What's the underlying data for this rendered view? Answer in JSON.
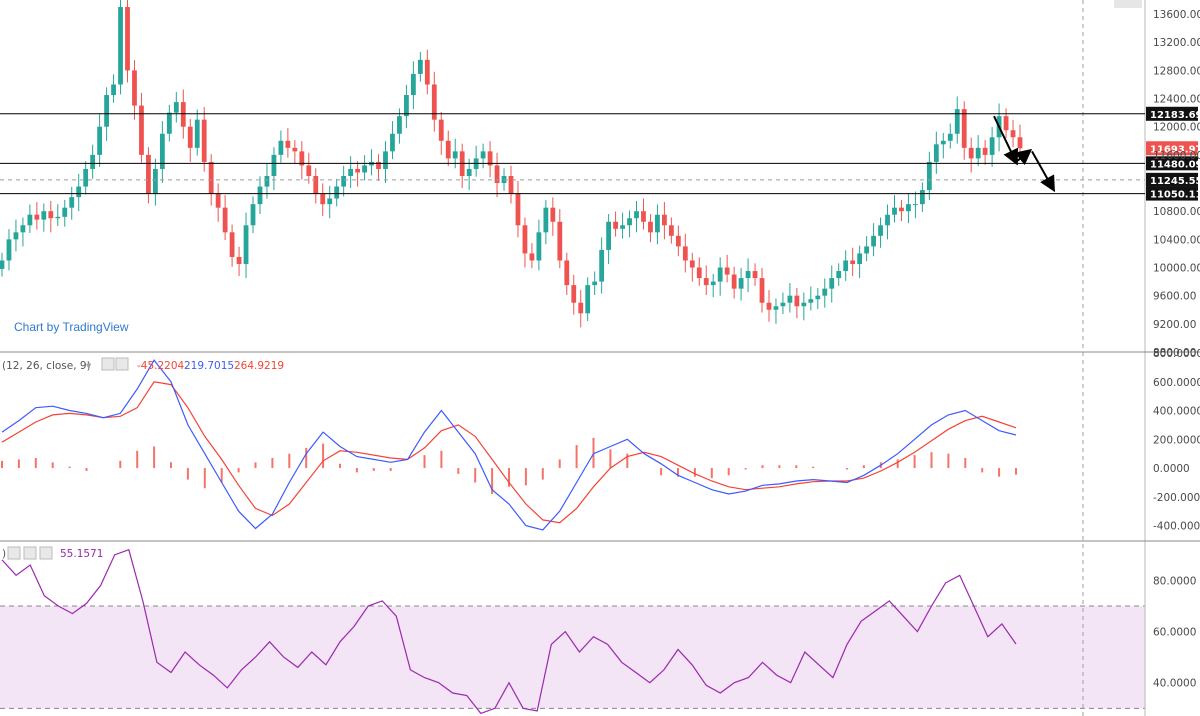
{
  "watermark": "Chart by TradingView",
  "colors": {
    "up": "#26a69a",
    "down": "#ef5350",
    "macd": "#3d5afe",
    "signal": "#f44336",
    "rsi": "#9c27b0",
    "rsi_band": "#f3e5f5"
  },
  "chart_data": [
    {
      "type": "candlestick",
      "panel": "price",
      "y_ticks": [
        "13600.00",
        "13200.00",
        "12800.00",
        "12400.00",
        "12000.00",
        "11600.00",
        "10800.00",
        "10400.00",
        "10000.00",
        "9600.00",
        "9200.00",
        "8800.00"
      ],
      "ylim": [
        8800,
        13800
      ],
      "level_labels": [
        "12183.69",
        "11693.97",
        "11480.09",
        "11245.55",
        "11050.11"
      ],
      "levels": [
        12183.69,
        11480.09,
        11245.55,
        11050.11
      ],
      "last_price": 11693.97,
      "close_series": [
        10100,
        10400,
        10500,
        10600,
        10750,
        10680,
        10800,
        10700,
        10720,
        10850,
        11000,
        11150,
        11400,
        11600,
        12000,
        12450,
        12600,
        13700,
        12800,
        12300,
        11600,
        11050,
        11400,
        11900,
        12200,
        12350,
        12000,
        11700,
        12100,
        11500,
        11050,
        10850,
        10500,
        10150,
        10050,
        10600,
        10900,
        11150,
        11300,
        11600,
        11800,
        11700,
        11650,
        11450,
        11300,
        11050,
        10900,
        10980,
        11150,
        11300,
        11400,
        11350,
        11450,
        11500,
        11400,
        11650,
        11900,
        12150,
        12450,
        12750,
        12950,
        12600,
        12100,
        11800,
        11550,
        11650,
        11300,
        11400,
        11550,
        11650,
        11450,
        11200,
        11300,
        11050,
        10600,
        10200,
        10100,
        10500,
        10850,
        10650,
        10100,
        9750,
        9500,
        9350,
        9750,
        9800,
        10250,
        10650,
        10550,
        10600,
        10700,
        10800,
        10650,
        10500,
        10750,
        10600,
        10450,
        10300,
        10100,
        10000,
        9850,
        9750,
        9800,
        10000,
        9900,
        9700,
        9850,
        9950,
        9850,
        9500,
        9400,
        9450,
        9500,
        9600,
        9450,
        9500,
        9550,
        9600,
        9700,
        9850,
        9950,
        10100,
        10050,
        10200,
        10300,
        10450,
        10600,
        10750,
        10850,
        10800,
        10900,
        10900,
        11100,
        11500,
        11750,
        11800,
        11900,
        12250,
        11700,
        11550,
        11700,
        11600,
        11850,
        12150,
        11950,
        11850,
        11693.97
      ],
      "projection_arrows": [
        [
          [
            12183,
            11480
          ],
          [
            11800,
            11245
          ]
        ],
        [
          [
            11500,
            11600
          ],
          [
            11245,
            11050
          ]
        ]
      ]
    },
    {
      "type": "line",
      "panel": "macd",
      "legend": [
        "(12, 26, close, 9)",
        "-45.2204",
        "219.7015",
        "264.9219"
      ],
      "y_ticks": [
        "800.0000",
        "600.0000",
        "400.0000",
        "200.0000",
        "0.0000",
        "-200.0000",
        "-400.0000"
      ],
      "ylim": [
        -500,
        800
      ],
      "series": [
        {
          "values": [
            250,
            330,
            420,
            430,
            400,
            380,
            350,
            380,
            550,
            750,
            600,
            300,
            100,
            -100,
            -300,
            -420,
            -320,
            -100,
            100,
            250,
            150,
            80,
            60,
            40,
            60,
            250,
            400,
            250,
            100,
            -150,
            -250,
            -400,
            -430,
            -300,
            -100,
            100,
            150,
            200,
            100,
            30,
            -50,
            -100,
            -150,
            -180,
            -160,
            -120,
            -110,
            -90,
            -80,
            -90,
            -100,
            -50,
            20,
            100,
            200,
            300,
            370,
            400,
            330,
            260,
            230
          ]
        },
        {
          "values": [
            180,
            250,
            320,
            370,
            380,
            370,
            350,
            360,
            420,
            600,
            580,
            420,
            220,
            60,
            -120,
            -280,
            -330,
            -250,
            -100,
            50,
            120,
            110,
            90,
            70,
            60,
            140,
            260,
            300,
            220,
            60,
            -100,
            -250,
            -360,
            -380,
            -280,
            -130,
            0,
            80,
            110,
            80,
            20,
            -40,
            -90,
            -130,
            -150,
            -140,
            -130,
            -110,
            -95,
            -90,
            -90,
            -70,
            -20,
            40,
            110,
            190,
            270,
            330,
            360,
            320,
            280
          ]
        },
        {
          "values": [
            50,
            60,
            70,
            40,
            10,
            -20,
            0,
            50,
            120,
            150,
            40,
            -80,
            -140,
            -100,
            -30,
            40,
            70,
            100,
            140,
            170,
            30,
            -30,
            -20,
            -20,
            0,
            90,
            120,
            -40,
            -100,
            -180,
            -130,
            -120,
            -80,
            60,
            160,
            210,
            130,
            100,
            0,
            -50,
            -60,
            -60,
            -70,
            -50,
            -10,
            20,
            20,
            20,
            10,
            0,
            -10,
            20,
            40,
            60,
            90,
            110,
            100,
            70,
            -30,
            -60,
            -45.2204
          ]
        }
      ]
    },
    {
      "type": "line",
      "panel": "rsi",
      "legend": [
        "55.1571"
      ],
      "y_ticks": [
        "80.0000",
        "60.0000",
        "40.0000"
      ],
      "ylim": [
        27,
        95
      ],
      "band": [
        30,
        70
      ],
      "series": [
        {
          "values": [
            88,
            82,
            86,
            74,
            70,
            67,
            71,
            78,
            90,
            92,
            72,
            48,
            44,
            52,
            47,
            43,
            38,
            45,
            50,
            56,
            50,
            46,
            52,
            47,
            56,
            62,
            70,
            72,
            66,
            45,
            42,
            40,
            36,
            35,
            28,
            30,
            40,
            30,
            29,
            55,
            60,
            52,
            58,
            55,
            48,
            44,
            40,
            45,
            53,
            47,
            39,
            36,
            40,
            42,
            48,
            43,
            40,
            52,
            47,
            42,
            55,
            64,
            68,
            72,
            66,
            60,
            70,
            79,
            82,
            70,
            58,
            63,
            55.1571
          ]
        }
      ]
    }
  ]
}
